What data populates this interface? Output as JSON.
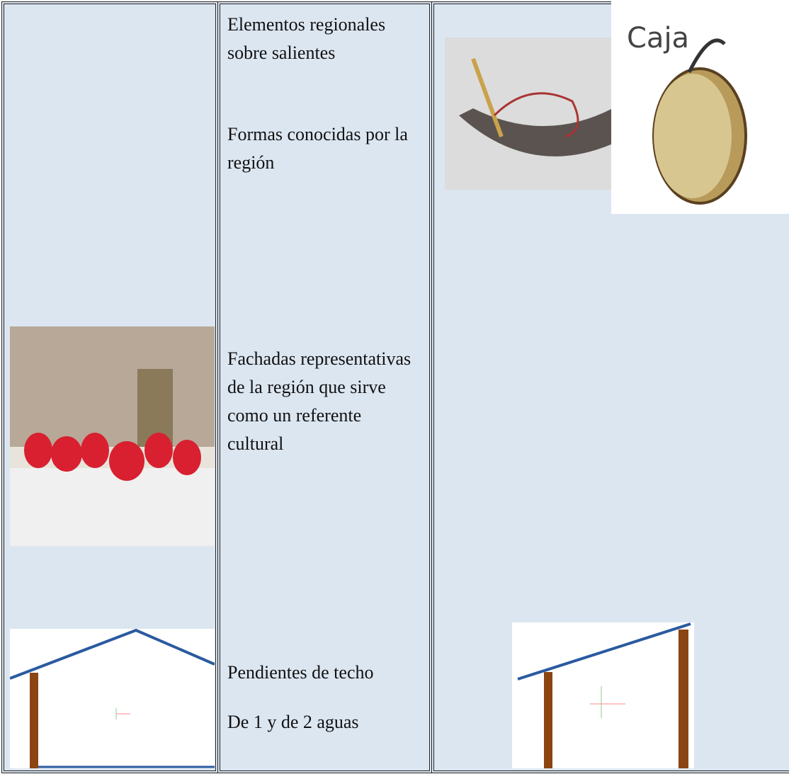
{
  "table": {
    "rows": [
      {
        "cells": [
          {
            "text": [
              "Elementos regionales sobre salientes",
              "Formas conocidas por la región"
            ]
          },
          {
            "image_label": "Caja"
          }
        ]
      },
      {
        "cells": [
          {
            "text": [
              "Fachadas representativas de la región que sirve como un referente cultural"
            ]
          }
        ]
      },
      {
        "cells": [
          {
            "text": [
              "Pendientes de techo",
              "De 1 y de 2 aguas"
            ]
          }
        ]
      }
    ]
  }
}
